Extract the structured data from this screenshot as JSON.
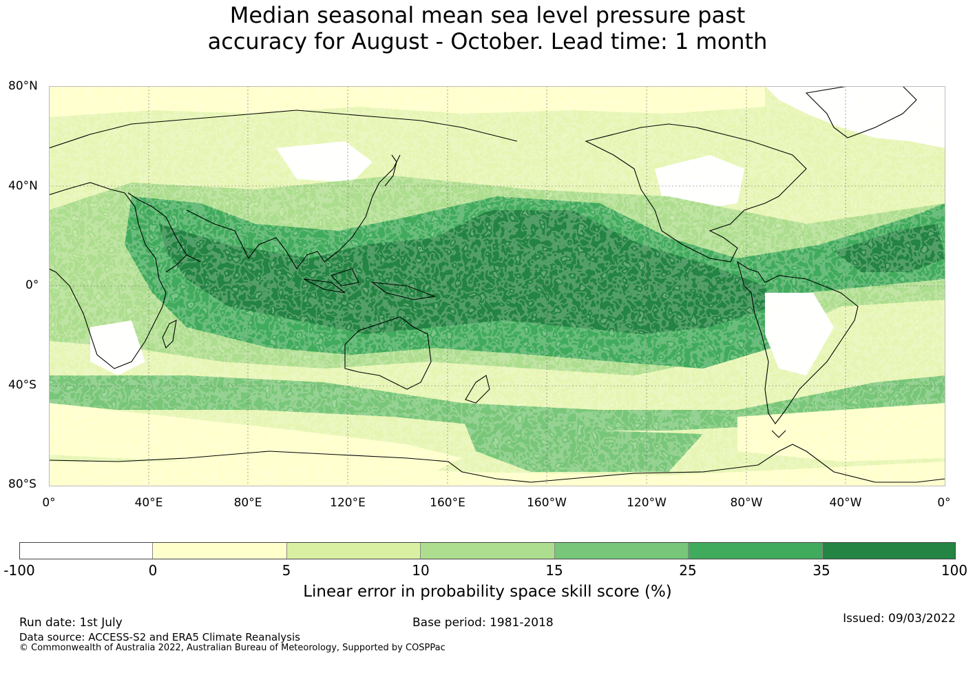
{
  "title": {
    "line1": "Median seasonal mean sea level pressure past",
    "line2": "accuracy for August - October. Lead time: 1 month"
  },
  "map": {
    "lat_labels": [
      "80°N",
      "40°N",
      "0°",
      "40°S",
      "80°S"
    ],
    "lon_labels": [
      "0°",
      "40°E",
      "80°E",
      "120°E",
      "160°E",
      "160°W",
      "120°W",
      "80°W",
      "40°W",
      "0°"
    ],
    "gridlines": true,
    "coastlines": true
  },
  "colorbar": {
    "ticks": [
      "-100",
      "0",
      "5",
      "10",
      "15",
      "25",
      "35",
      "100"
    ],
    "colors": [
      "#ffffff",
      "#ffffcc",
      "#d9f0a3",
      "#addd8e",
      "#78c679",
      "#41ab5d",
      "#238443"
    ],
    "label": "Linear error in probability space skill score (%)"
  },
  "footer": {
    "run_date": "Run date: 1st July",
    "base_period": "Base period: 1981-2018",
    "issued": "Issued: 09/03/2022",
    "data_source": "Data source: ACCESS-S2 and ERA5 Climate Reanalysis",
    "copyright": "© Commonwealth of Australia 2022, Australian Bureau of Meteorology, Supported by COSPPac"
  }
}
